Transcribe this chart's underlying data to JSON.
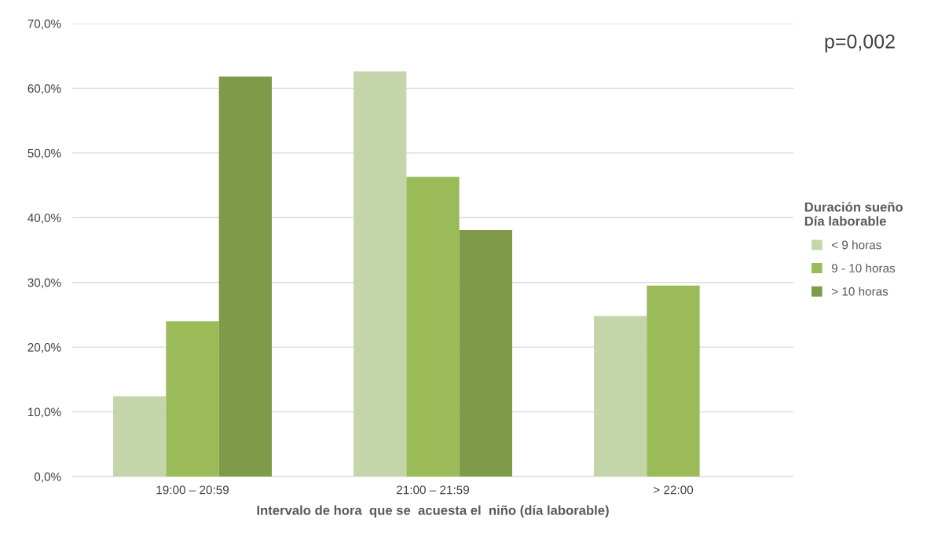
{
  "chart_data": {
    "type": "bar",
    "xlabel": "Intervalo de hora  que se  acuesta el  niño (día laborable)",
    "categories": [
      "19:00 – 20:59",
      "21:00 – 21:59",
      "> 22:00"
    ],
    "series": [
      {
        "name": "< 9 horas",
        "color": "#c5d5aa",
        "values": [
          12.4,
          62.6,
          24.8
        ]
      },
      {
        "name": "9 - 10 horas",
        "color": "#9bbb59",
        "values": [
          24.0,
          46.3,
          29.5
        ]
      },
      {
        "name": "> 10 horas",
        "color": "#7f9a48",
        "values": [
          61.8,
          38.1,
          null
        ]
      }
    ],
    "legend_title": "Duración sueño\nDía laborable",
    "legend": "right",
    "ylim": [
      0,
      70
    ],
    "yticks": [
      {
        "value": 0,
        "label": "0,0%"
      },
      {
        "value": 10,
        "label": "10,0%"
      },
      {
        "value": 20,
        "label": "20,0%"
      },
      {
        "value": 30,
        "label": "30,0%"
      },
      {
        "value": 40,
        "label": "40,0%"
      },
      {
        "value": 50,
        "label": "50,0%"
      },
      {
        "value": 60,
        "label": "60,0%"
      },
      {
        "value": 70,
        "label": "70,0%"
      }
    ],
    "grid": "y",
    "annotations": [
      "p=0,002"
    ]
  }
}
